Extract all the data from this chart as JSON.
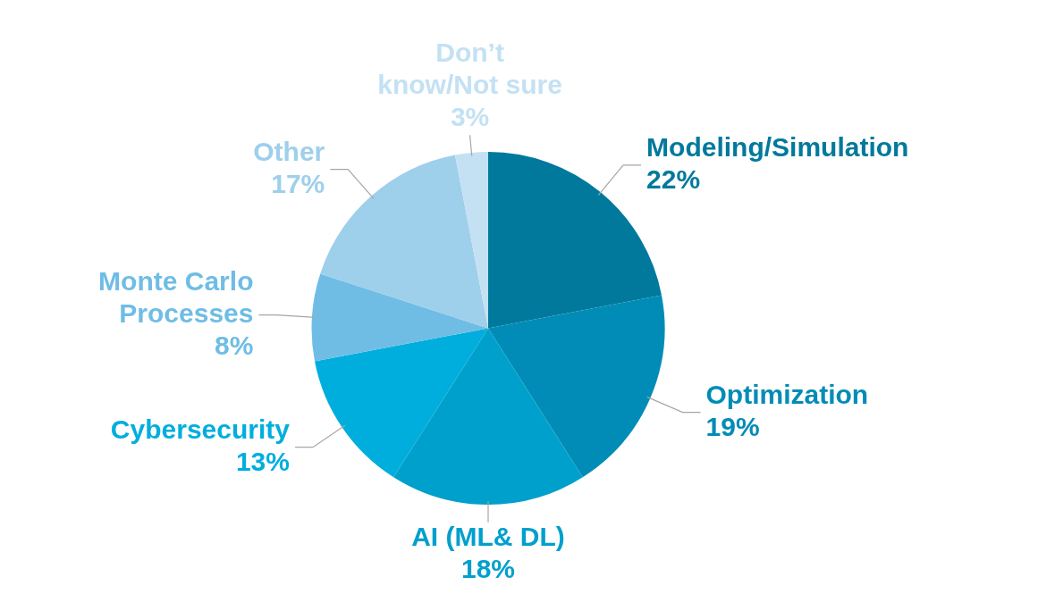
{
  "chart_data": {
    "type": "pie",
    "categories": [
      "Modeling/Simulation",
      "Optimization",
      "AI (ML& DL)",
      "Cybersecurity",
      "Monte Carlo Processes",
      "Other",
      "Don’t know/Not sure"
    ],
    "values": [
      22,
      19,
      18,
      13,
      8,
      17,
      3
    ],
    "value_labels": [
      "22%",
      "19%",
      "18%",
      "13%",
      "8%",
      "17%",
      "3%"
    ],
    "colors": [
      "#00799c",
      "#008cb6",
      "#00a0cc",
      "#00aede",
      "#6fbde5",
      "#9ecfeb",
      "#c4e1f3"
    ],
    "legend": false
  }
}
